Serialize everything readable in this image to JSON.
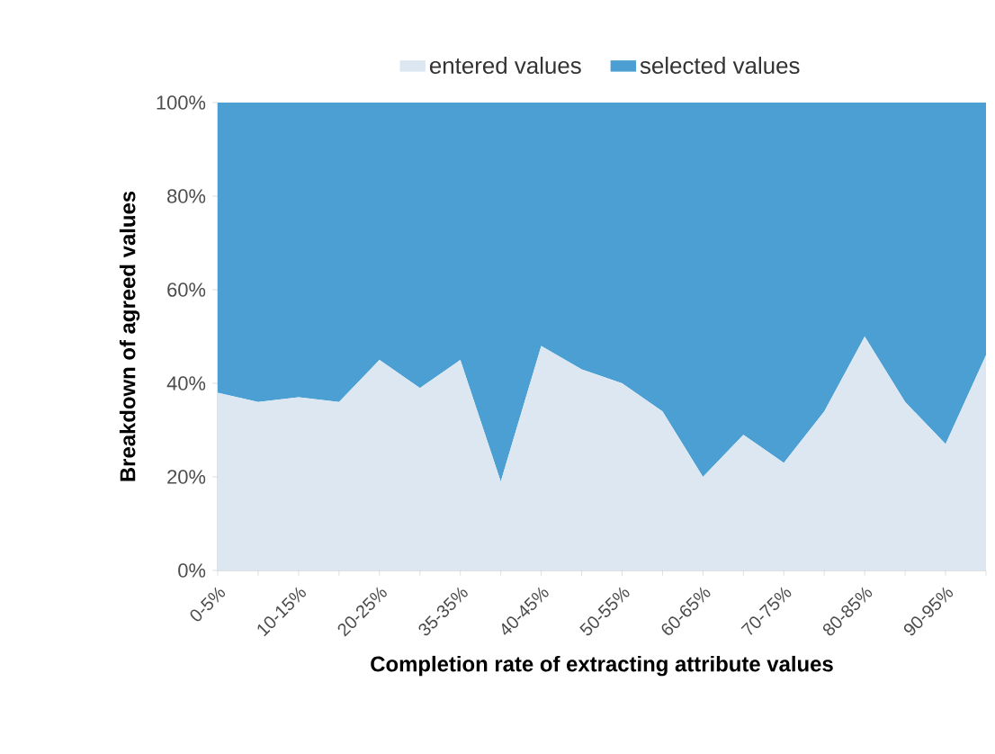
{
  "chart_data": {
    "type": "area",
    "stacked": true,
    "legend": "top",
    "xlabel": "Completion rate of extracting attribute values",
    "ylabel": "Breakdown of agreed values",
    "categories": [
      "0-5%",
      null,
      "10-15%",
      null,
      "20-25%",
      null,
      "35-35%",
      null,
      "40-45%",
      null,
      "50-55%",
      null,
      "60-65%",
      null,
      "70-75%",
      null,
      "80-85%",
      null,
      "90-95%",
      null
    ],
    "series": [
      {
        "name": "entered values",
        "color": "#dce7f1",
        "values": [
          38,
          36,
          37,
          36,
          45,
          39,
          45,
          19,
          48,
          43,
          40,
          34,
          20,
          29,
          23,
          34,
          50,
          36,
          27,
          46
        ]
      },
      {
        "name": "selected values",
        "color": "#4b9fd2",
        "values": [
          62,
          64,
          63,
          64,
          55,
          61,
          55,
          81,
          52,
          57,
          60,
          66,
          80,
          71,
          77,
          66,
          50,
          64,
          73,
          54
        ]
      }
    ],
    "ylim": [
      0,
      100
    ],
    "yticks": [
      {
        "value": 0,
        "label": "0%"
      },
      {
        "value": 20,
        "label": "20%"
      },
      {
        "value": 40,
        "label": "40%"
      },
      {
        "value": 60,
        "label": "60%"
      },
      {
        "value": 80,
        "label": "80%"
      },
      {
        "value": 100,
        "label": "100%"
      }
    ]
  }
}
